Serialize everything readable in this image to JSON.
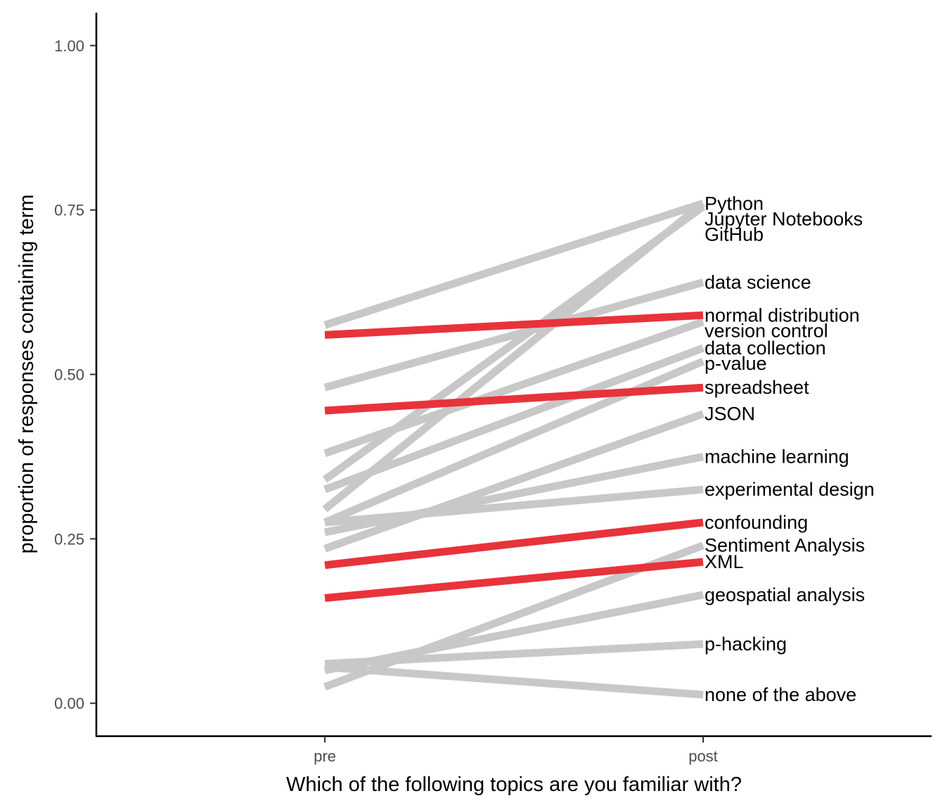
{
  "chart_data": {
    "type": "line",
    "xlabel": "Which of the following topics are you familiar with?",
    "ylabel": "proportion of responses containing term",
    "categories": [
      "pre",
      "post"
    ],
    "ylim": [
      -0.05,
      1.05
    ],
    "yticks": [
      {
        "value": 0.0,
        "label": "0.00"
      },
      {
        "value": 0.25,
        "label": "0.25"
      },
      {
        "value": 0.5,
        "label": "0.50"
      },
      {
        "value": 0.75,
        "label": "0.75"
      },
      {
        "value": 1.0,
        "label": "1.00"
      }
    ],
    "grid": false,
    "legend": "none",
    "colors": {
      "highlight": "#e8333b",
      "muted": "#c8c8c8"
    },
    "series": [
      {
        "name": "Python",
        "values": [
          0.575,
          0.76
        ],
        "highlight": false
      },
      {
        "name": "GitHub",
        "values": [
          0.34,
          0.755
        ],
        "highlight": false
      },
      {
        "name": "Jupyter Notebooks",
        "values": [
          0.295,
          0.76
        ],
        "highlight": false
      },
      {
        "name": "data science",
        "values": [
          0.48,
          0.64
        ],
        "highlight": false
      },
      {
        "name": "normal distribution",
        "values": [
          0.56,
          0.59
        ],
        "highlight": true
      },
      {
        "name": "version control",
        "values": [
          0.38,
          0.58
        ],
        "highlight": false
      },
      {
        "name": "data collection",
        "values": [
          0.325,
          0.54
        ],
        "highlight": false
      },
      {
        "name": "p-value",
        "values": [
          0.275,
          0.52
        ],
        "highlight": false
      },
      {
        "name": "spreadsheet",
        "values": [
          0.445,
          0.48
        ],
        "highlight": true
      },
      {
        "name": "JSON",
        "values": [
          0.235,
          0.44
        ],
        "highlight": false
      },
      {
        "name": "machine learning",
        "values": [
          0.26,
          0.375
        ],
        "highlight": false
      },
      {
        "name": "experimental design",
        "values": [
          0.275,
          0.325
        ],
        "highlight": false
      },
      {
        "name": "confounding",
        "values": [
          0.21,
          0.275
        ],
        "highlight": true
      },
      {
        "name": "Sentiment Analysis",
        "values": [
          0.025,
          0.24
        ],
        "highlight": false
      },
      {
        "name": "XML",
        "values": [
          0.16,
          0.215
        ],
        "highlight": true
      },
      {
        "name": "geospatial analysis",
        "values": [
          0.05,
          0.165
        ],
        "highlight": false
      },
      {
        "name": "p-hacking",
        "values": [
          0.06,
          0.09
        ],
        "highlight": false
      },
      {
        "name": "none of the above",
        "values": [
          0.055,
          0.013
        ],
        "highlight": false
      }
    ]
  }
}
